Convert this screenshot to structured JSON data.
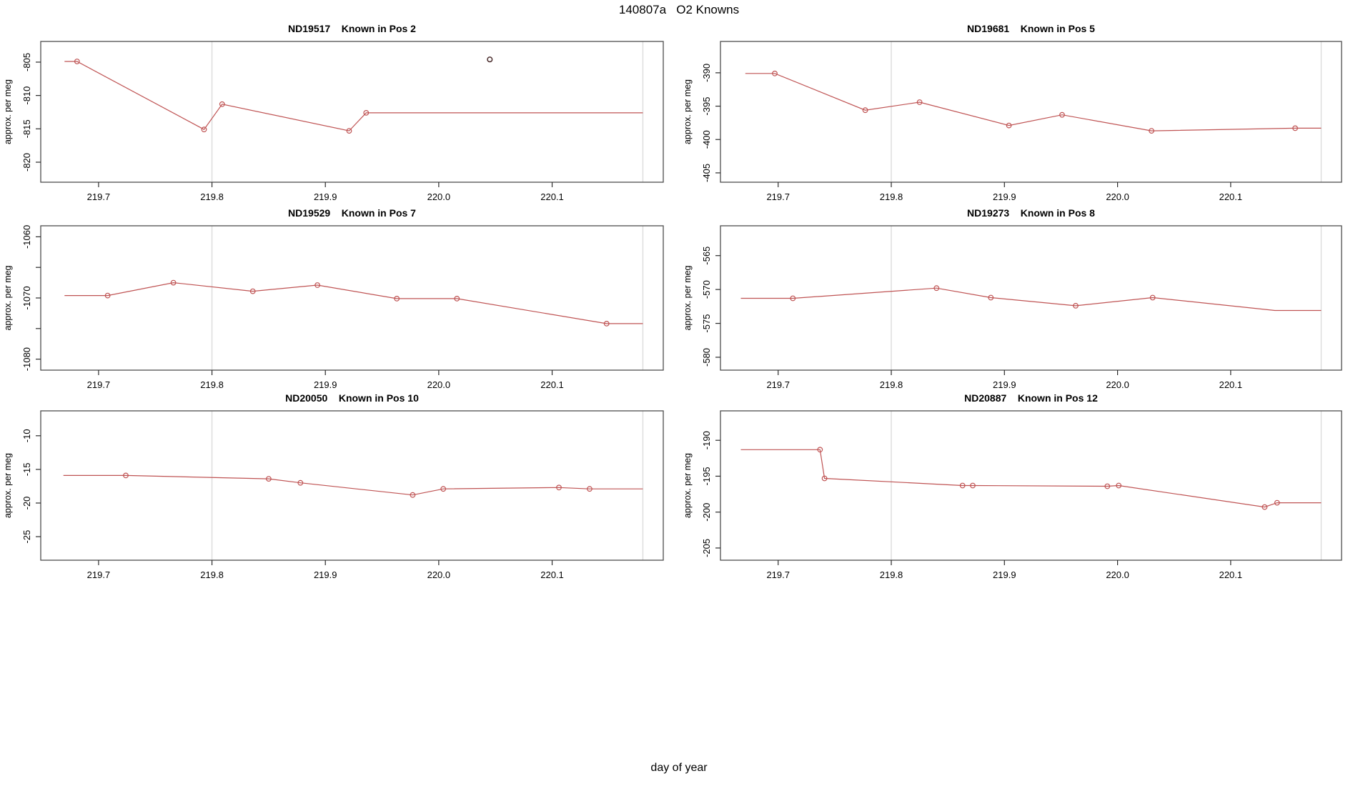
{
  "figure": {
    "title": "140807a   O2 Knowns",
    "xlabel": "day of year"
  },
  "colors": {
    "series": "#bf5353",
    "outlier": "#4a2c2c",
    "vline": "#dcdcdc",
    "border": "#4d4d4d",
    "tick": "#2b2b2b",
    "text": "#000000"
  },
  "x_axis": {
    "lim": [
      219.649,
      220.198
    ],
    "ticks": [
      219.7,
      219.8,
      219.9,
      220.0,
      220.1
    ],
    "tick_labels": [
      "219.7",
      "219.8",
      "219.9",
      "220.0",
      "220.1"
    ],
    "vlines": [
      219.8,
      220.18
    ]
  },
  "chart_data": [
    {
      "type": "line",
      "title": "ND19517    Known in Pos 2",
      "ylabel": "approx. per meg",
      "ylim": [
        -823.0,
        -801.9
      ],
      "yticks": [
        -805,
        -810,
        -815,
        -820
      ],
      "ytick_labels": [
        "-805",
        "-810",
        "-815",
        "-820"
      ],
      "minor_yticks": [],
      "x": [
        219.67,
        219.681,
        219.793,
        219.809,
        219.921,
        219.936,
        220.18
      ],
      "y": [
        -804.9,
        -804.9,
        -815.1,
        -811.3,
        -815.3,
        -812.6,
        -812.6
      ],
      "marker": [
        false,
        true,
        true,
        true,
        true,
        true,
        false
      ],
      "outlier_points": [
        {
          "x": 220.045,
          "y": -804.6
        }
      ]
    },
    {
      "type": "line",
      "title": "ND19681    Known in Pos 5",
      "ylabel": "approx. per meg",
      "ylim": [
        -406.4,
        -385.3
      ],
      "yticks": [
        -390,
        -395,
        -400,
        -405
      ],
      "ytick_labels": [
        "-390",
        "-395",
        "-400",
        "-405"
      ],
      "minor_yticks": [],
      "x": [
        219.671,
        219.697,
        219.777,
        219.825,
        219.904,
        219.951,
        220.03,
        220.157,
        220.18
      ],
      "y": [
        -390.1,
        -390.1,
        -395.6,
        -394.4,
        -397.9,
        -396.3,
        -398.7,
        -398.3,
        -398.3
      ],
      "marker": [
        false,
        true,
        true,
        true,
        true,
        true,
        true,
        true,
        false
      ],
      "outlier_points": []
    },
    {
      "type": "line",
      "title": "ND19529    Known in Pos 7",
      "ylabel": "approx. per meg",
      "ylim": [
        -1081.8,
        -1058.2
      ],
      "yticks": [
        -1060,
        -1070,
        -1080
      ],
      "ytick_labels": [
        "-1060",
        "-1070",
        "-1080"
      ],
      "minor_yticks": [
        -1065,
        -1075
      ],
      "x": [
        219.67,
        219.708,
        219.766,
        219.836,
        219.893,
        219.963,
        220.016,
        220.148,
        220.18
      ],
      "y": [
        -1069.6,
        -1069.6,
        -1067.5,
        -1068.9,
        -1067.9,
        -1070.1,
        -1070.1,
        -1074.2,
        -1074.2
      ],
      "marker": [
        false,
        true,
        true,
        true,
        true,
        true,
        true,
        true,
        false
      ],
      "outlier_points": []
    },
    {
      "type": "line",
      "title": "ND19273    Known in Pos 8",
      "ylabel": "approx. per meg",
      "ylim": [
        -581.9,
        -560.6
      ],
      "yticks": [
        -565,
        -570,
        -575,
        -580
      ],
      "ytick_labels": [
        "-565",
        "-570",
        "-575",
        "-580"
      ],
      "minor_yticks": [],
      "x": [
        219.667,
        219.713,
        219.84,
        219.888,
        219.963,
        220.031,
        220.139,
        220.18
      ],
      "y": [
        -571.3,
        -571.3,
        -569.8,
        -571.2,
        -572.4,
        -571.2,
        -573.1,
        -573.1
      ],
      "marker": [
        false,
        true,
        true,
        true,
        true,
        true,
        false
      ],
      "outlier_points": []
    },
    {
      "type": "line",
      "title": "ND20050    Known in Pos 10",
      "ylabel": "approx. per meg",
      "ylim": [
        -28.5,
        -6.3
      ],
      "yticks": [
        -10,
        -15,
        -20,
        -25
      ],
      "ytick_labels": [
        "-10",
        "-15",
        "-20",
        "-25"
      ],
      "minor_yticks": [],
      "x": [
        219.669,
        219.724,
        219.85,
        219.878,
        219.977,
        220.004,
        220.106,
        220.133,
        220.18
      ],
      "y": [
        -15.9,
        -15.9,
        -16.4,
        -17.0,
        -18.8,
        -17.9,
        -17.7,
        -17.9,
        -17.9
      ],
      "marker": [
        false,
        true,
        true,
        true,
        true,
        true,
        true,
        true,
        false
      ],
      "outlier_points": []
    },
    {
      "type": "line",
      "title": "ND20887    Known in Pos 12",
      "ylabel": "approx. per meg",
      "ylim": [
        -206.7,
        -185.9
      ],
      "yticks": [
        -190,
        -195,
        -200,
        -205
      ],
      "ytick_labels": [
        "-190",
        "-195",
        "-200",
        "-205"
      ],
      "minor_yticks": [],
      "x": [
        219.667,
        219.737,
        219.741,
        219.863,
        219.872,
        219.991,
        220.001,
        220.13,
        220.141,
        220.18
      ],
      "y": [
        -191.3,
        -191.3,
        -195.3,
        -196.3,
        -196.3,
        -196.4,
        -196.3,
        -199.3,
        -198.7,
        -198.7
      ],
      "marker": [
        false,
        true,
        true,
        true,
        true,
        true,
        true,
        true,
        true,
        false
      ],
      "outlier_points": []
    }
  ]
}
